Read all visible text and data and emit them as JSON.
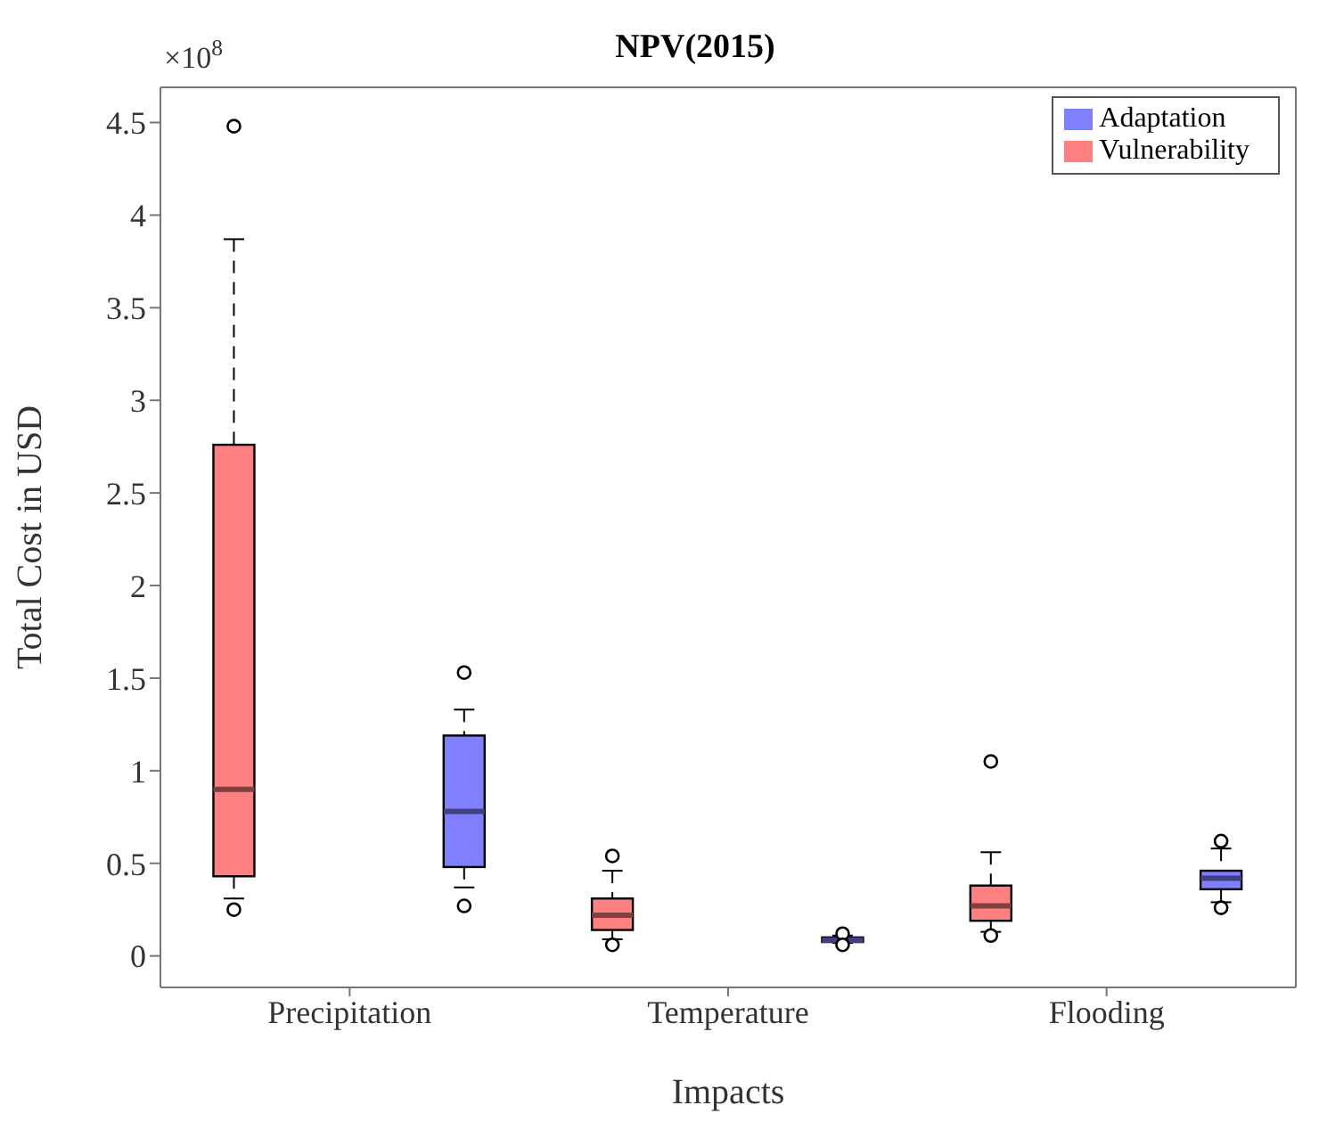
{
  "chart_data": {
    "type": "box",
    "title": "NPV(2015)",
    "xlabel": "Impacts",
    "ylabel": "Total Cost in USD",
    "annotations": [
      "×10$^{8}$"
    ],
    "categories": [
      "Precipitation",
      "Temperature",
      "Flooding"
    ],
    "series": [
      {
        "name": "Vulnerability",
        "color": "#ff8080",
        "boxes": [
          {
            "low": 0.31,
            "q1": 0.43,
            "median": 0.9,
            "q3": 2.76,
            "high": 3.87,
            "outliers": [
              4.48,
              0.25
            ]
          },
          {
            "low": 0.09,
            "q1": 0.14,
            "median": 0.22,
            "q3": 0.31,
            "high": 0.46,
            "outliers": [
              0.54,
              0.06
            ]
          },
          {
            "low": 0.13,
            "q1": 0.19,
            "median": 0.27,
            "q3": 0.38,
            "high": 0.56,
            "outliers": [
              1.05,
              0.11
            ]
          }
        ]
      },
      {
        "name": "Adaptation",
        "color": "#8080ff",
        "boxes": [
          {
            "low": 0.37,
            "q1": 0.48,
            "median": 0.78,
            "q3": 1.19,
            "high": 1.33,
            "outliers": [
              1.53,
              0.27
            ]
          },
          {
            "low": 0.07,
            "q1": 0.075,
            "median": 0.085,
            "q3": 0.1,
            "high": 0.11,
            "outliers": [
              0.12,
              0.06
            ]
          },
          {
            "low": 0.29,
            "q1": 0.36,
            "median": 0.42,
            "q3": 0.46,
            "high": 0.58,
            "outliers": [
              0.62,
              0.26
            ]
          }
        ]
      }
    ],
    "ylim": [
      -0.17,
      4.69
    ],
    "yticks": [
      0,
      0.5,
      1,
      1.5,
      2,
      2.5,
      3,
      3.5,
      4,
      4.5
    ],
    "legend": "top right",
    "grid": false,
    "line_style": "dashed"
  }
}
